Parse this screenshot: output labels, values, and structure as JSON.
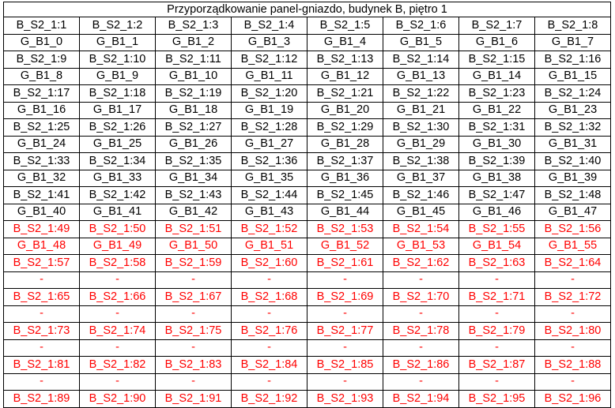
{
  "title": "Przyporządkowanie panel-gniazdo, budynek B, piętro 1",
  "colors": {
    "normal": "#000000",
    "highlight": "#ff0000"
  },
  "rows": [
    {
      "red": false,
      "cells": [
        "B_S2_1:1",
        "B_S2_1:2",
        "B_S2_1:3",
        "B_S2_1:4",
        "B_S2_1:5",
        "B_S2_1:6",
        "B_S2_1:7",
        "B_S2_1:8"
      ]
    },
    {
      "red": false,
      "cells": [
        "G_B1_0",
        "G_B1_1",
        "G_B1_2",
        "G_B1_3",
        "G_B1_4",
        "G_B1_5",
        "G_B1_6",
        "G_B1_7"
      ]
    },
    {
      "red": false,
      "cells": [
        "B_S2_1:9",
        "B_S2_1:10",
        "B_S2_1:11",
        "B_S2_1:12",
        "B_S2_1:13",
        "B_S2_1:14",
        "B_S2_1:15",
        "B_S2_1:16"
      ]
    },
    {
      "red": false,
      "cells": [
        "G_B1_8",
        "G_B1_9",
        "G_B1_10",
        "G_B1_11",
        "G_B1_12",
        "G_B1_13",
        "G_B1_14",
        "G_B1_15"
      ]
    },
    {
      "red": false,
      "cells": [
        "B_S2_1:17",
        "B_S2_1:18",
        "B_S2_1:19",
        "B_S2_1:20",
        "B_S2_1:21",
        "B_S2_1:22",
        "B_S2_1:23",
        "B_S2_1:24"
      ]
    },
    {
      "red": false,
      "cells": [
        "G_B1_16",
        "G_B1_17",
        "G_B1_18",
        "G_B1_19",
        "G_B1_20",
        "G_B1_21",
        "G_B1_22",
        "G_B1_23"
      ]
    },
    {
      "red": false,
      "cells": [
        "B_S2_1:25",
        "B_S2_1:26",
        "B_S2_1:27",
        "B_S2_1:28",
        "B_S2_1:29",
        "B_S2_1:30",
        "B_S2_1:31",
        "B_S2_1:32"
      ]
    },
    {
      "red": false,
      "cells": [
        "G_B1_24",
        "G_B1_25",
        "G_B1_26",
        "G_B1_27",
        "G_B1_28",
        "G_B1_29",
        "G_B1_30",
        "G_B1_31"
      ]
    },
    {
      "red": false,
      "cells": [
        "B_S2_1:33",
        "B_S2_1:34",
        "B_S2_1:35",
        "B_S2_1:36",
        "B_S2_1:37",
        "B_S2_1:38",
        "B_S2_1:39",
        "B_S2_1:40"
      ]
    },
    {
      "red": false,
      "cells": [
        "G_B1_32",
        "G_B1_33",
        "G_B1_34",
        "G_B1_35",
        "G_B1_36",
        "G_B1_37",
        "G_B1_38",
        "G_B1_39"
      ]
    },
    {
      "red": false,
      "cells": [
        "B_S2_1:41",
        "B_S2_1:42",
        "B_S2_1:43",
        "B_S2_1:44",
        "B_S2_1:45",
        "B_S2_1:46",
        "B_S2_1:47",
        "B_S2_1:48"
      ]
    },
    {
      "red": false,
      "cells": [
        "G_B1_40",
        "G_B1_41",
        "G_B1_42",
        "G_B1_43",
        "G_B1_44",
        "G_B1_45",
        "G_B1_46",
        "G_B1_47"
      ]
    },
    {
      "red": true,
      "cells": [
        "B_S2_1:49",
        "B_S2_1:50",
        "B_S2_1:51",
        "B_S2_1:52",
        "B_S2_1:53",
        "B_S2_1:54",
        "B_S2_1:55",
        "B_S2_1:56"
      ]
    },
    {
      "red": true,
      "cells": [
        "G_B1_48",
        "G_B1_49",
        "G_B1_50",
        "G_B1_51",
        "G_B1_52",
        "G_B1_53",
        "G_B1_54",
        "G_B1_55"
      ]
    },
    {
      "red": true,
      "cells": [
        "B_S2_1:57",
        "B_S2_1:58",
        "B_S2_1:59",
        "B_S2_1:60",
        "B_S2_1:61",
        "B_S2_1:62",
        "B_S2_1:63",
        "B_S2_1:64"
      ]
    },
    {
      "red": true,
      "cells": [
        "-",
        "-",
        "-",
        "-",
        "-",
        "-",
        "-",
        "-"
      ]
    },
    {
      "red": true,
      "cells": [
        "B_S2_1:65",
        "B_S2_1:66",
        "B_S2_1:67",
        "B_S2_1:68",
        "B_S2_1:69",
        "B_S2_1:70",
        "B_S2_1:71",
        "B_S2_1:72"
      ]
    },
    {
      "red": true,
      "cells": [
        "-",
        "-",
        "-",
        "-",
        "-",
        "-",
        "-",
        "-"
      ]
    },
    {
      "red": true,
      "cells": [
        "B_S2_1:73",
        "B_S2_1:74",
        "B_S2_1:75",
        "B_S2_1:76",
        "B_S2_1:77",
        "B_S2_1:78",
        "B_S2_1:79",
        "B_S2_1:80"
      ]
    },
    {
      "red": true,
      "cells": [
        "-",
        "-",
        "-",
        "-",
        "-",
        "-",
        "-",
        "-"
      ]
    },
    {
      "red": true,
      "cells": [
        "B_S2_1:81",
        "B_S2_1:82",
        "B_S2_1:83",
        "B_S2_1:84",
        "B_S2_1:85",
        "B_S2_1:86",
        "B_S2_1:87",
        "B_S2_1:88"
      ]
    },
    {
      "red": true,
      "cells": [
        "-",
        "-",
        "-",
        "-",
        "-",
        "-",
        "-",
        "-"
      ]
    },
    {
      "red": true,
      "cells": [
        "B_S2_1:89",
        "B_S2_1:90",
        "B_S2_1:91",
        "B_S2_1:92",
        "B_S2_1:93",
        "B_S2_1:94",
        "B_S2_1:95",
        "B_S2_1:96"
      ]
    }
  ]
}
